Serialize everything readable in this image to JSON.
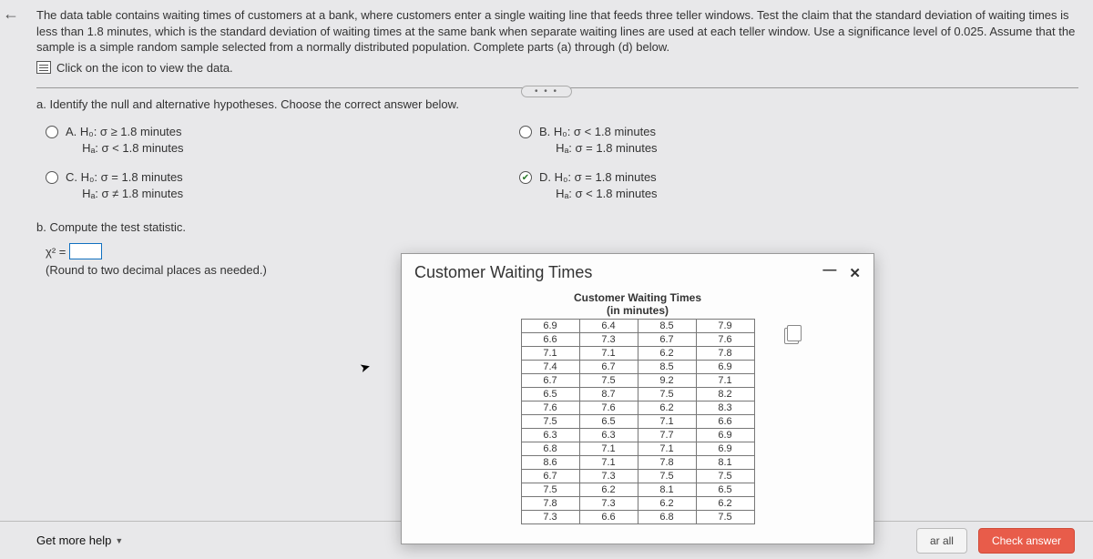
{
  "back_arrow": "←",
  "problem": {
    "text": "The data table contains waiting times of customers at a bank, where customers enter a single waiting line that feeds three teller windows. Test the claim that the standard deviation of waiting times is less than 1.8 minutes, which is the standard deviation of waiting times at the same bank when separate waiting lines are used at each teller window. Use a significance level of 0.025. Assume that the sample is a simple random sample selected from a normally distributed population. Complete parts (a) through (d) below.",
    "link_text": "Click on the icon to view the data."
  },
  "ellipsis": "• • •",
  "part_a": {
    "title": "a. Identify the null and alternative hypotheses. Choose the correct answer below.",
    "options": {
      "A": {
        "letter": "A.",
        "line1": "H₀: σ ≥ 1.8 minutes",
        "line2": "Hₐ: σ < 1.8 minutes"
      },
      "B": {
        "letter": "B.",
        "line1": "H₀: σ < 1.8 minutes",
        "line2": "Hₐ: σ = 1.8 minutes"
      },
      "C": {
        "letter": "C.",
        "line1": "H₀: σ = 1.8 minutes",
        "line2": "Hₐ: σ ≠ 1.8 minutes"
      },
      "D": {
        "letter": "D.",
        "line1": "H₀: σ = 1.8 minutes",
        "line2": "Hₐ: σ < 1.8 minutes"
      }
    }
  },
  "part_b": {
    "title": "b. Compute the test statistic.",
    "chi_label": "χ² =",
    "round_note": "(Round to two decimal places as needed.)"
  },
  "footer": {
    "help": "Get more help",
    "clear": "ar all",
    "check": "Check answer"
  },
  "modal": {
    "title": "Customer Waiting Times",
    "min": "—",
    "close": "✕",
    "data_title": "Customer Waiting Times",
    "data_sub": "(in minutes)",
    "rows": [
      [
        "6.9",
        "6.4",
        "8.5",
        "7.9"
      ],
      [
        "6.6",
        "7.3",
        "6.7",
        "7.6"
      ],
      [
        "7.1",
        "7.1",
        "6.2",
        "7.8"
      ],
      [
        "7.4",
        "6.7",
        "8.5",
        "6.9"
      ],
      [
        "6.7",
        "7.5",
        "9.2",
        "7.1"
      ],
      [
        "6.5",
        "8.7",
        "7.5",
        "8.2"
      ],
      [
        "7.6",
        "7.6",
        "6.2",
        "8.3"
      ],
      [
        "7.5",
        "6.5",
        "7.1",
        "6.6"
      ],
      [
        "6.3",
        "6.3",
        "7.7",
        "6.9"
      ],
      [
        "6.8",
        "7.1",
        "7.1",
        "6.9"
      ],
      [
        "8.6",
        "7.1",
        "7.8",
        "8.1"
      ],
      [
        "6.7",
        "7.3",
        "7.5",
        "7.5"
      ],
      [
        "7.5",
        "6.2",
        "8.1",
        "6.5"
      ],
      [
        "7.8",
        "7.3",
        "6.2",
        "6.2"
      ],
      [
        "7.3",
        "6.6",
        "6.8",
        "7.5"
      ]
    ]
  }
}
